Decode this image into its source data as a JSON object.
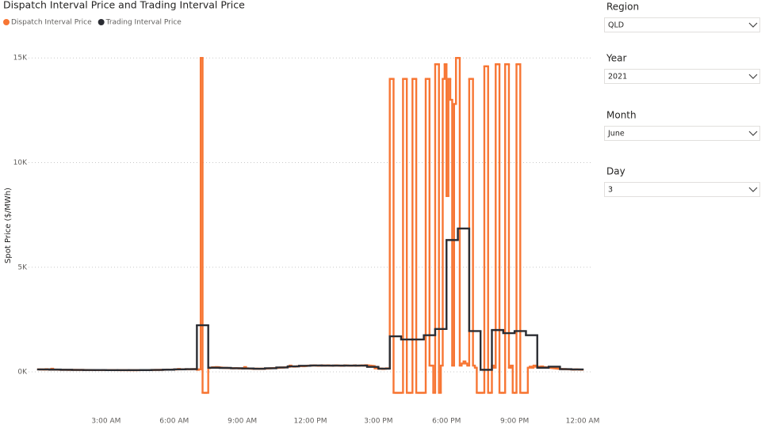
{
  "chart_data": {
    "type": "line",
    "step": true,
    "title": "Dispatch Interval Price and Trading Interval Price",
    "y_label": "Spot Price ($/MWh)",
    "xlim": [
      0,
      1440
    ],
    "xticks": [
      {
        "value": 180,
        "label": "3:00 AM"
      },
      {
        "value": 360,
        "label": "6:00 AM"
      },
      {
        "value": 540,
        "label": "9:00 AM"
      },
      {
        "value": 720,
        "label": "12:00 PM"
      },
      {
        "value": 900,
        "label": "3:00 PM"
      },
      {
        "value": 1080,
        "label": "6:00 PM"
      },
      {
        "value": 1260,
        "label": "9:00 PM"
      },
      {
        "value": 1440,
        "label": "12:00 AM"
      }
    ],
    "ylim": [
      -1700,
      15500
    ],
    "yticks": [
      {
        "value": 0,
        "label": "0K"
      },
      {
        "value": 5000,
        "label": "5K"
      },
      {
        "value": 10000,
        "label": "10K"
      },
      {
        "value": 15000,
        "label": "15K"
      }
    ],
    "grid": true,
    "series": [
      {
        "name": "Dispatch Interval Price",
        "color": "#f77634",
        "x": [
          0,
          5,
          10,
          15,
          20,
          25,
          30,
          35,
          40,
          45,
          50,
          55,
          60,
          65,
          70,
          75,
          80,
          85,
          90,
          95,
          100,
          105,
          110,
          115,
          120,
          125,
          130,
          135,
          140,
          145,
          150,
          155,
          160,
          165,
          170,
          175,
          180,
          185,
          190,
          195,
          200,
          205,
          210,
          215,
          220,
          225,
          230,
          235,
          240,
          245,
          250,
          255,
          260,
          265,
          270,
          275,
          280,
          285,
          290,
          295,
          300,
          305,
          310,
          315,
          320,
          325,
          330,
          335,
          340,
          345,
          350,
          355,
          360,
          365,
          370,
          375,
          380,
          385,
          390,
          395,
          400,
          405,
          410,
          415,
          420,
          425,
          430,
          435,
          440,
          445,
          450,
          455,
          460,
          465,
          470,
          475,
          480,
          485,
          490,
          495,
          500,
          505,
          510,
          515,
          520,
          525,
          530,
          535,
          540,
          545,
          550,
          555,
          560,
          565,
          570,
          575,
          580,
          585,
          590,
          595,
          600,
          605,
          610,
          615,
          620,
          625,
          630,
          635,
          640,
          645,
          650,
          655,
          660,
          665,
          670,
          675,
          680,
          685,
          690,
          695,
          700,
          705,
          710,
          715,
          720,
          725,
          730,
          735,
          740,
          745,
          750,
          755,
          760,
          765,
          770,
          775,
          780,
          785,
          790,
          795,
          800,
          805,
          810,
          815,
          820,
          825,
          830,
          835,
          840,
          845,
          850,
          855,
          860,
          865,
          870,
          875,
          880,
          885,
          890,
          895,
          900,
          905,
          910,
          915,
          920,
          925,
          930,
          935,
          940,
          945,
          950,
          955,
          960,
          965,
          970,
          975,
          980,
          985,
          990,
          995,
          1000,
          1005,
          1010,
          1015,
          1020,
          1025,
          1030,
          1035,
          1040,
          1045,
          1050,
          1055,
          1060,
          1065,
          1070,
          1075,
          1080,
          1085,
          1090,
          1095,
          1100,
          1105,
          1110,
          1115,
          1120,
          1125,
          1130,
          1135,
          1140,
          1145,
          1150,
          1155,
          1160,
          1165,
          1170,
          1175,
          1180,
          1185,
          1190,
          1195,
          1200,
          1205,
          1210,
          1215,
          1220,
          1225,
          1230,
          1235,
          1240,
          1245,
          1250,
          1255,
          1260,
          1265,
          1270,
          1275,
          1280,
          1285,
          1290,
          1295,
          1300,
          1305,
          1310,
          1315,
          1320,
          1325,
          1330,
          1335,
          1340,
          1345,
          1350,
          1355,
          1360,
          1365,
          1370,
          1375,
          1380,
          1385,
          1390,
          1395,
          1400,
          1405,
          1410,
          1415,
          1420,
          1425,
          1430,
          1435
        ],
        "values": [
          120,
          115,
          118,
          110,
          130,
          112,
          108,
          150,
          105,
          110,
          104,
          100,
          100,
          98,
          102,
          96,
          95,
          99,
          97,
          94,
          96,
          92,
          93,
          95,
          90,
          92,
          89,
          91,
          88,
          90,
          87,
          89,
          86,
          88,
          90,
          85,
          85,
          84,
          86,
          83,
          85,
          82,
          84,
          80,
          83,
          81,
          82,
          80,
          80,
          82,
          79,
          81,
          80,
          83,
          85,
          84,
          86,
          88,
          87,
          90,
          90,
          92,
          95,
          93,
          96,
          98,
          100,
          102,
          110,
          105,
          108,
          112,
          115,
          118,
          140,
          120,
          125,
          122,
          130,
          128,
          126,
          132,
          130,
          135,
          100,
          120,
          15000,
          -1000,
          -1000,
          -1000,
          180,
          200,
          220,
          210,
          230,
          220,
          210,
          200,
          190,
          195,
          185,
          180,
          175,
          170,
          180,
          175,
          165,
          170,
          160,
          230,
          170,
          160,
          155,
          150,
          150,
          155,
          148,
          150,
          152,
          150,
          160,
          165,
          170,
          175,
          180,
          185,
          190,
          200,
          210,
          205,
          215,
          220,
          240,
          300,
          260,
          250,
          260,
          270,
          280,
          275,
          270,
          280,
          290,
          300,
          300,
          305,
          310,
          300,
          295,
          305,
          310,
          300,
          305,
          310,
          300,
          295,
          300,
          310,
          305,
          300,
          290,
          300,
          310,
          305,
          300,
          295,
          300,
          310,
          300,
          295,
          305,
          310,
          300,
          320,
          310,
          300,
          290,
          280,
          170,
          180,
          150,
          160,
          140,
          150,
          170,
          160,
          14000,
          14000,
          -1000,
          -1000,
          -1000,
          -1000,
          -1000,
          14000,
          14000,
          -1000,
          -1000,
          -1000,
          14000,
          14000,
          -1000,
          -1000,
          -1000,
          -1000,
          -1000,
          14000,
          14000,
          300,
          300,
          -1000,
          14700,
          14700,
          -1000,
          300,
          14000,
          14700,
          8400,
          14000,
          13000,
          300,
          12800,
          15000,
          15000,
          300,
          400,
          500,
          400,
          300,
          14000,
          14000,
          300,
          200,
          -1000,
          -1000,
          -1000,
          -1000,
          14600,
          14600,
          -1000,
          -1000,
          300,
          200,
          14700,
          14700,
          -1000,
          -1000,
          -1000,
          14700,
          14700,
          200,
          300,
          -1000,
          -1000,
          14700,
          14700,
          -1000,
          -1000,
          -1000,
          -1000,
          200,
          250,
          200,
          300,
          250,
          250,
          240,
          260,
          230,
          220,
          210,
          200,
          190,
          180,
          170,
          160,
          150,
          140,
          130,
          135,
          130,
          125,
          120,
          115,
          110,
          120,
          115,
          110,
          105
        ]
      },
      {
        "name": "Trading Interval Price",
        "color": "#2b2d33",
        "x": [
          0,
          30,
          60,
          90,
          120,
          150,
          180,
          210,
          240,
          270,
          300,
          330,
          360,
          390,
          420,
          450,
          480,
          510,
          540,
          570,
          600,
          630,
          660,
          690,
          720,
          750,
          780,
          810,
          840,
          870,
          900,
          930,
          960,
          990,
          1020,
          1050,
          1080,
          1110,
          1140,
          1170,
          1200,
          1230,
          1260,
          1290,
          1320,
          1350,
          1380,
          1410
        ],
        "values": [
          115,
          110,
          100,
          95,
          90,
          88,
          84,
          82,
          82,
          86,
          95,
          105,
          120,
          130,
          2230,
          200,
          190,
          172,
          165,
          150,
          175,
          210,
          265,
          290,
          305,
          302,
          303,
          300,
          300,
          240,
          155,
          1700,
          1550,
          1550,
          1750,
          2050,
          6300,
          6850,
          1950,
          100,
          2000,
          1850,
          1950,
          1750,
          200,
          250,
          130,
          115
        ]
      }
    ]
  },
  "slicers": [
    {
      "label": "Region",
      "value": "QLD"
    },
    {
      "label": "Year",
      "value": "2021"
    },
    {
      "label": "Month",
      "value": "June"
    },
    {
      "label": "Day",
      "value": "3"
    }
  ]
}
